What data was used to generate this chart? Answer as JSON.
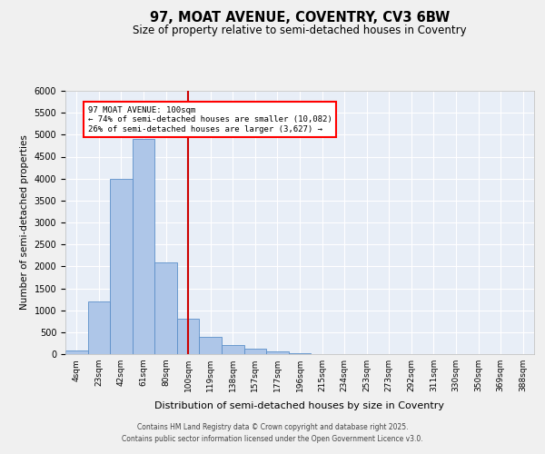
{
  "title": "97, MOAT AVENUE, COVENTRY, CV3 6BW",
  "subtitle": "Size of property relative to semi-detached houses in Coventry",
  "xlabel": "Distribution of semi-detached houses by size in Coventry",
  "ylabel": "Number of semi-detached properties",
  "annotation_text_line1": "97 MOAT AVENUE: 100sqm",
  "annotation_text_line2": "← 74% of semi-detached houses are smaller (10,082)",
  "annotation_text_line3": "26% of semi-detached houses are larger (3,627) →",
  "categories": [
    "4sqm",
    "23sqm",
    "42sqm",
    "61sqm",
    "80sqm",
    "100sqm",
    "119sqm",
    "138sqm",
    "157sqm",
    "177sqm",
    "196sqm",
    "215sqm",
    "234sqm",
    "253sqm",
    "273sqm",
    "292sqm",
    "311sqm",
    "330sqm",
    "350sqm",
    "369sqm",
    "388sqm"
  ],
  "values": [
    80,
    1200,
    4000,
    4900,
    2100,
    800,
    400,
    200,
    120,
    70,
    30,
    5,
    0,
    0,
    0,
    0,
    0,
    0,
    0,
    0,
    0
  ],
  "bar_color": "#aec6e8",
  "bar_edge_color": "#5b8fc9",
  "vline_color": "#cc0000",
  "vline_x_idx": 5,
  "background_color": "#e8eef7",
  "grid_color": "#ffffff",
  "fig_facecolor": "#f0f0f0",
  "ylim": [
    0,
    6000
  ],
  "yticks": [
    0,
    500,
    1000,
    1500,
    2000,
    2500,
    3000,
    3500,
    4000,
    4500,
    5000,
    5500,
    6000
  ],
  "footer_line1": "Contains HM Land Registry data © Crown copyright and database right 2025.",
  "footer_line2": "Contains public sector information licensed under the Open Government Licence v3.0."
}
